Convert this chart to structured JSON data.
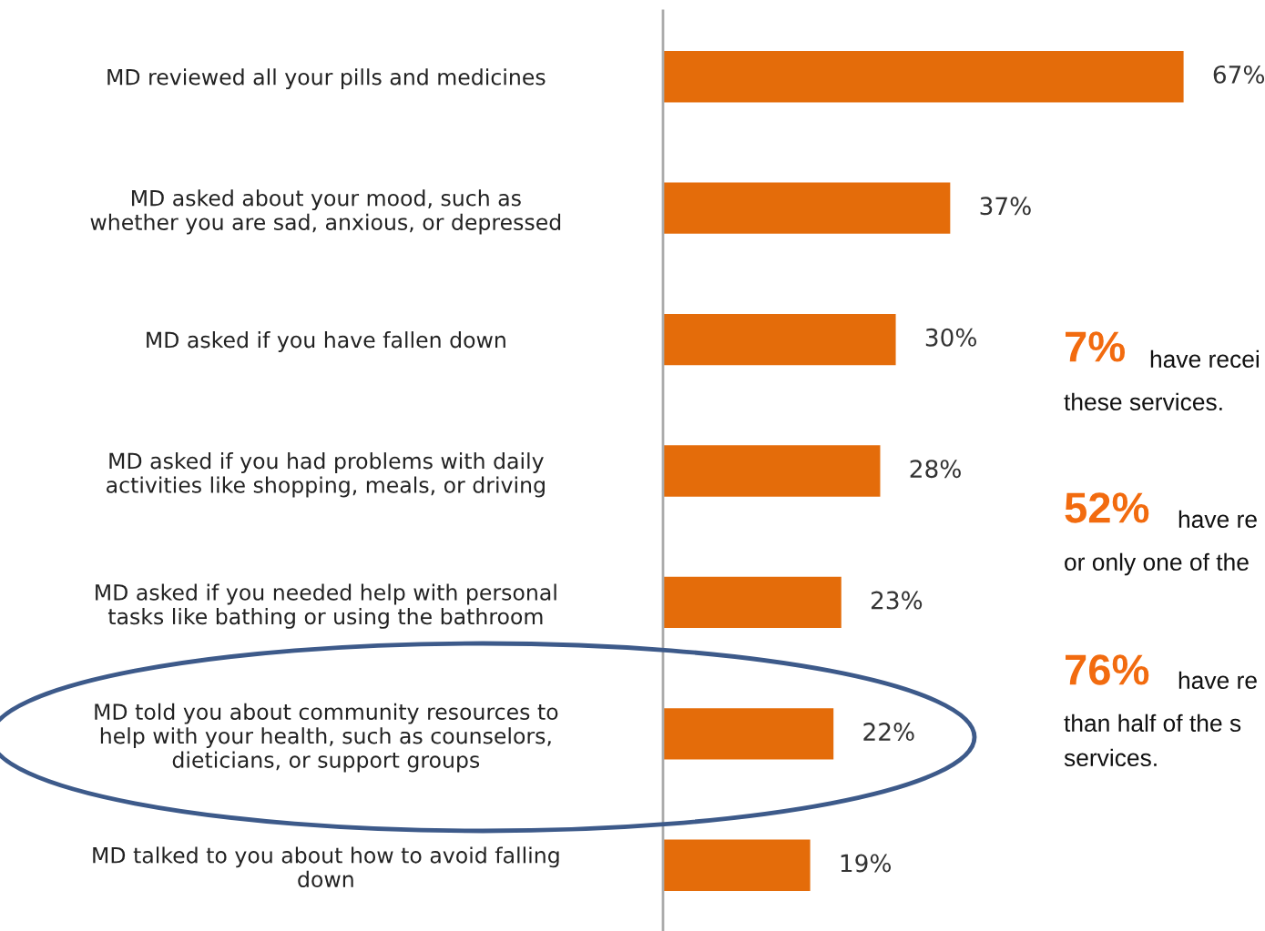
{
  "chart_data": {
    "type": "bar",
    "orientation": "horizontal",
    "tick_labels": "y",
    "data_labels": true,
    "grid": false,
    "legend": false,
    "categories": [
      "MD reviewed all your pills and medicines",
      "MD asked about your mood, such as\nwhether you are sad, anxious, or depressed",
      "MD asked if you have fallen down",
      "MD asked if you had problems with daily\nactivities like shopping, meals, or driving",
      "MD asked if you needed help with personal\ntasks like bathing or using the bathroom",
      "MD told you about community resources to\nhelp with your health, such as counselors,\ndieticians, or support groups",
      "MD talked to you about how to avoid falling\ndown"
    ],
    "values": [
      67,
      37,
      30,
      28,
      23,
      22,
      19
    ],
    "value_labels": [
      "67%",
      "37%",
      "30%",
      "28%",
      "23%",
      "22%",
      "19%"
    ],
    "color": "#e46c0a",
    "annotations": [
      "7%",
      "have recei",
      "these services.",
      "52%",
      "have re",
      "or only one of the",
      "76%",
      "have re",
      "than half of the s",
      "services."
    ]
  }
}
